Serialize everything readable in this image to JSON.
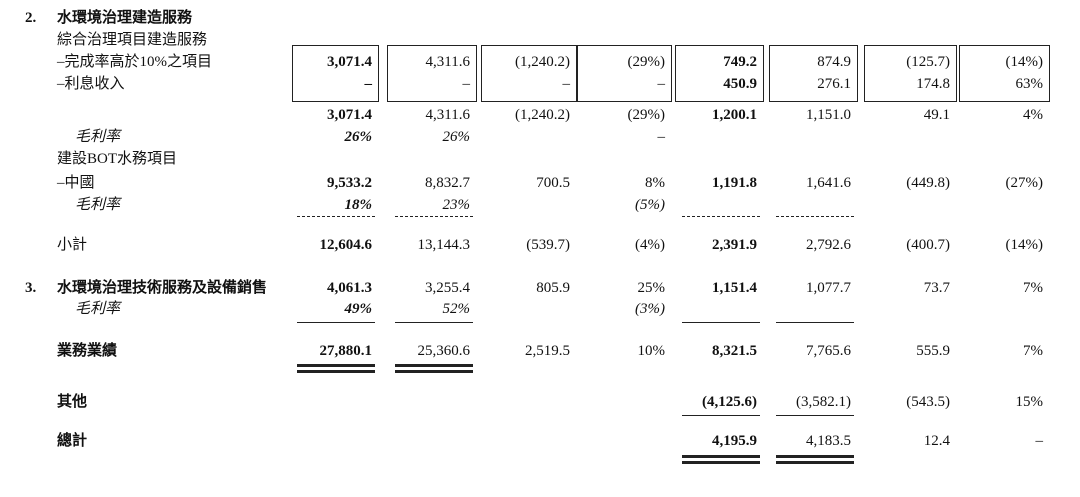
{
  "table": {
    "rows": [
      {
        "number": "2.",
        "label": "水環境治理建造服務"
      },
      {
        "label": "綜合治理項目建造服務"
      },
      {
        "label": "–完成率高於10%之項目",
        "cells": [
          "3,071.4",
          "4,311.6",
          "(1,240.2)",
          "(29%)",
          "749.2",
          "874.9",
          "(125.7)",
          "(14%)"
        ]
      },
      {
        "label": "–利息收入",
        "cells": [
          "–",
          "–",
          "–",
          "–",
          "450.9",
          "276.1",
          "174.8",
          "63%"
        ]
      },
      {
        "cells": [
          "3,071.4",
          "4,311.6",
          "(1,240.2)",
          "(29%)",
          "1,200.1",
          "1,151.0",
          "49.1",
          "4%"
        ]
      },
      {
        "label": "毛利率",
        "cells": [
          "26%",
          "26%",
          null,
          "–",
          null,
          null,
          null,
          null
        ]
      },
      {
        "label": "建設BOT水務項目"
      },
      {
        "label": "–中國",
        "cells": [
          "9,533.2",
          "8,832.7",
          "700.5",
          "8%",
          "1,191.8",
          "1,641.6",
          "(449.8)",
          "(27%)"
        ]
      },
      {
        "label": "毛利率",
        "cells": [
          "18%",
          "23%",
          null,
          "(5%)",
          null,
          null,
          null,
          null
        ]
      },
      {
        "label": "小計",
        "cells": [
          "12,604.6",
          "13,144.3",
          "(539.7)",
          "(4%)",
          "2,391.9",
          "2,792.6",
          "(400.7)",
          "(14%)"
        ]
      },
      {
        "number": "3.",
        "label": "水環境治理技術服務及設備銷售",
        "cells": [
          "4,061.3",
          "3,255.4",
          "805.9",
          "25%",
          "1,151.4",
          "1,077.7",
          "73.7",
          "7%"
        ]
      },
      {
        "label": "毛利率",
        "cells": [
          "49%",
          "52%",
          null,
          "(3%)",
          null,
          null,
          null,
          null
        ]
      },
      {
        "label": "業務業績",
        "cells": [
          "27,880.1",
          "25,360.6",
          "2,519.5",
          "10%",
          "8,321.5",
          "7,765.6",
          "555.9",
          "7%"
        ]
      },
      {
        "label": "其他",
        "cells": [
          null,
          null,
          null,
          null,
          "(4,125.6)",
          "(3,582.1)",
          "(543.5)",
          "15%"
        ]
      },
      {
        "label": "總計",
        "cells": [
          null,
          null,
          null,
          null,
          "4,195.9",
          "4,183.5",
          "12.4",
          "–"
        ]
      }
    ]
  }
}
